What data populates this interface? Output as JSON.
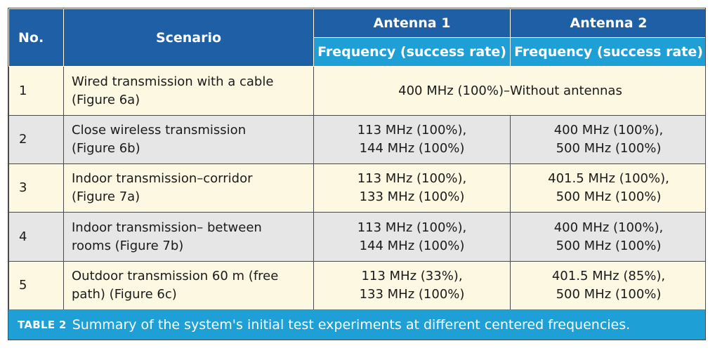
{
  "header": {
    "no": "No.",
    "scenario": "Scenario",
    "antenna1": "Antenna 1",
    "antenna2": "Antenna 2",
    "freq1": "Frequency (success rate)",
    "freq2": "Frequency (success rate)"
  },
  "rows": [
    {
      "no": "1",
      "scenario": [
        "Wired transmission with a cable",
        "(Figure 6a)"
      ],
      "merged": "400 MHz (100%)–Without antennas"
    },
    {
      "no": "2",
      "scenario": [
        "Close wireless transmission",
        "(Figure 6b)"
      ],
      "a1": [
        "113 MHz (100%),",
        "144 MHz (100%)"
      ],
      "a2": [
        "400 MHz (100%),",
        "500 MHz (100%)"
      ]
    },
    {
      "no": "3",
      "scenario": [
        "Indoor transmission–corridor",
        "(Figure 7a)"
      ],
      "a1": [
        "113 MHz (100%),",
        "133 MHz (100%)"
      ],
      "a2": [
        "401.5 MHz (100%),",
        "500 MHz (100%)"
      ]
    },
    {
      "no": "4",
      "scenario": [
        "Indoor transmission– between",
        "rooms (Figure 7b)"
      ],
      "a1": [
        "113 MHz (100%),",
        "144 MHz (100%)"
      ],
      "a2": [
        "400 MHz (100%),",
        "500 MHz (100%)"
      ]
    },
    {
      "no": "5",
      "scenario": [
        "Outdoor transmission 60 m (free",
        "path) (Figure 6c)"
      ],
      "a1": [
        "113 MHz (33%),",
        "133 MHz (100%)"
      ],
      "a2": [
        "401.5 MHz (85%),",
        "500 MHz (100%)"
      ]
    }
  ],
  "caption": {
    "label": "TABLE 2",
    "text": "Summary of the system's initial test experiments at different centered frequencies."
  },
  "colors": {
    "header_dark": "#1f5fa6",
    "header_light": "#1ea0d6",
    "row_odd": "#fdf8e2",
    "row_even": "#e6e6e6"
  }
}
